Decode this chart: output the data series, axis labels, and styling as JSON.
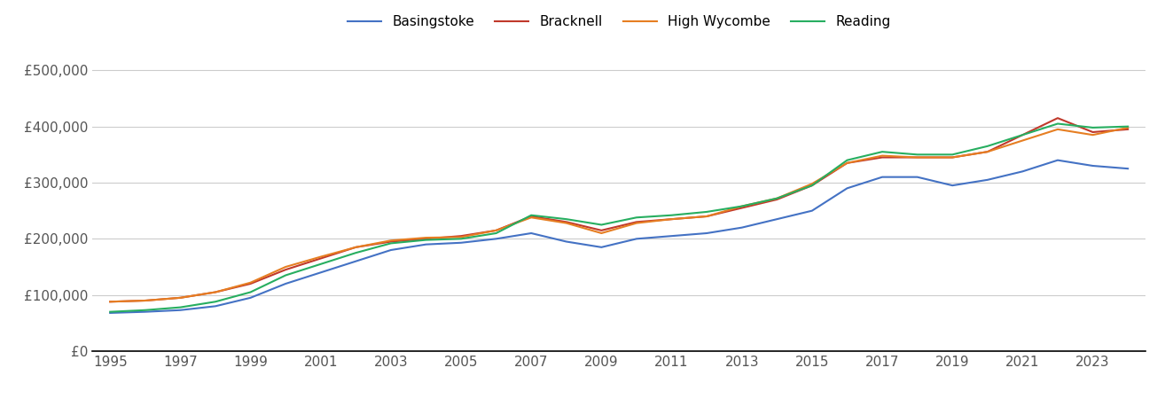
{
  "years": [
    1995,
    1996,
    1997,
    1998,
    1999,
    2000,
    2001,
    2002,
    2003,
    2004,
    2005,
    2006,
    2007,
    2008,
    2009,
    2010,
    2011,
    2012,
    2013,
    2014,
    2015,
    2016,
    2017,
    2018,
    2019,
    2020,
    2021,
    2022,
    2023,
    2024
  ],
  "Basingstoke": [
    68000,
    70000,
    73000,
    80000,
    95000,
    120000,
    140000,
    160000,
    180000,
    190000,
    193000,
    200000,
    210000,
    195000,
    185000,
    200000,
    205000,
    210000,
    220000,
    235000,
    250000,
    290000,
    310000,
    310000,
    295000,
    305000,
    320000,
    340000,
    330000,
    325000
  ],
  "Bracknell": [
    88000,
    90000,
    95000,
    105000,
    120000,
    145000,
    165000,
    185000,
    195000,
    200000,
    205000,
    215000,
    240000,
    230000,
    215000,
    230000,
    235000,
    240000,
    255000,
    270000,
    295000,
    335000,
    345000,
    345000,
    345000,
    355000,
    385000,
    415000,
    390000,
    395000
  ],
  "High Wycombe": [
    88000,
    90000,
    95000,
    105000,
    122000,
    150000,
    168000,
    185000,
    197000,
    202000,
    203000,
    215000,
    238000,
    228000,
    210000,
    228000,
    235000,
    240000,
    258000,
    272000,
    298000,
    335000,
    348000,
    345000,
    345000,
    355000,
    375000,
    395000,
    385000,
    398000
  ],
  "Reading": [
    70000,
    73000,
    78000,
    88000,
    105000,
    135000,
    155000,
    175000,
    192000,
    198000,
    200000,
    210000,
    242000,
    235000,
    225000,
    238000,
    242000,
    248000,
    258000,
    272000,
    295000,
    340000,
    355000,
    350000,
    350000,
    365000,
    385000,
    405000,
    398000,
    400000
  ],
  "colors": {
    "Basingstoke": "#4472C4",
    "Bracknell": "#C0392B",
    "High Wycombe": "#E67E22",
    "Reading": "#27AE60"
  },
  "yticks": [
    0,
    100000,
    200000,
    300000,
    400000,
    500000
  ],
  "ytick_labels": [
    "£0",
    "£100,000",
    "£200,000",
    "£300,000",
    "£400,000",
    "£500,000"
  ],
  "ylim": [
    0,
    540000
  ],
  "xlim": [
    1994.5,
    2024.5
  ],
  "xticks": [
    1995,
    1997,
    1999,
    2001,
    2003,
    2005,
    2007,
    2009,
    2011,
    2013,
    2015,
    2017,
    2019,
    2021,
    2023
  ],
  "background_color": "#ffffff",
  "grid_color": "#cccccc",
  "legend_ncol": 4,
  "figsize": [
    13.05,
    4.5
  ],
  "dpi": 100
}
